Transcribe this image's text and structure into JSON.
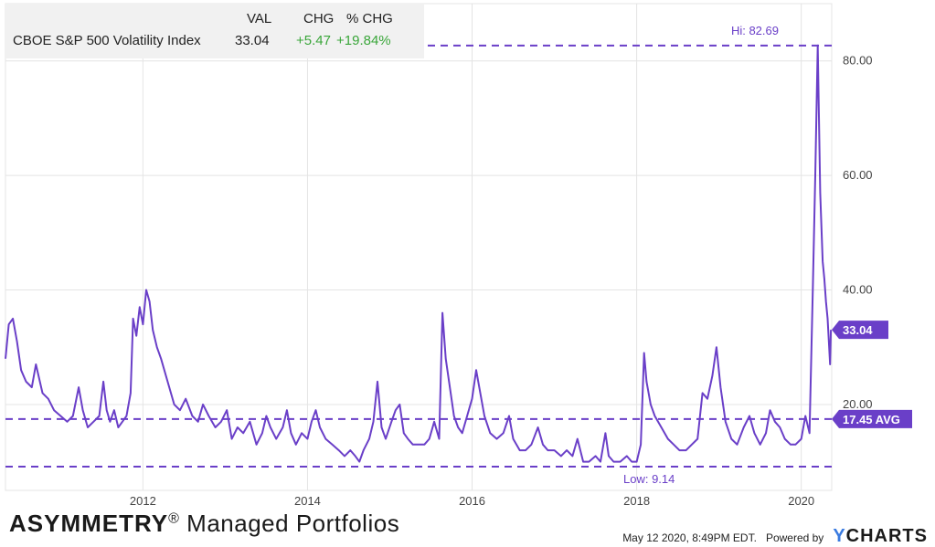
{
  "legend": {
    "col_val": "VAL",
    "col_chg": "CHG",
    "col_pct": "% CHG",
    "name": "CBOE S&P 500 Volatility Index",
    "val": "33.04",
    "chg": "+5.47",
    "pct": "+19.84%"
  },
  "footer": {
    "brand_bold": "ASYMMETRY",
    "brand_reg": "®",
    "brand_rest": " Managed Portfolios",
    "timestamp": "May 12 2020, 8:49PM EDT.",
    "powered": "Powered by",
    "ycharts_y": "Y",
    "ycharts_rest": "CHARTS"
  },
  "colors": {
    "line": "#6a3fc8",
    "grid": "#e4e4e4",
    "label_bg": "#6a3fc8",
    "positive": "#3aa63a"
  },
  "chart_data": {
    "type": "line",
    "title": "CBOE S&P 500 Volatility Index",
    "xlabel": "",
    "ylabel": "",
    "xlim": [
      2010.33,
      2020.37
    ],
    "ylim": [
      5,
      90
    ],
    "x_ticks": [
      2012,
      2014,
      2016,
      2018,
      2020
    ],
    "x_tick_labels": [
      "2012",
      "2014",
      "2016",
      "2018",
      "2020"
    ],
    "y_ticks": [
      20,
      40,
      60,
      80
    ],
    "y_tick_labels": [
      "20.00",
      "40.00",
      "60.00",
      "80.00"
    ],
    "grid": true,
    "reference_lines": [
      {
        "value": 82.69,
        "label": "Hi: 82.69"
      },
      {
        "value": 17.45,
        "label": "17.45 AVG"
      },
      {
        "value": 9.14,
        "label": "Low: 9.14"
      }
    ],
    "last_value": {
      "value": 33.04,
      "label": "33.04"
    },
    "series": [
      {
        "values": [
          [
            2010.33,
            28
          ],
          [
            2010.37,
            34
          ],
          [
            2010.42,
            35
          ],
          [
            2010.47,
            31
          ],
          [
            2010.52,
            26
          ],
          [
            2010.58,
            24
          ],
          [
            2010.65,
            23
          ],
          [
            2010.7,
            27
          ],
          [
            2010.78,
            22
          ],
          [
            2010.85,
            21
          ],
          [
            2010.92,
            19
          ],
          [
            2011.0,
            18
          ],
          [
            2011.08,
            17
          ],
          [
            2011.15,
            18
          ],
          [
            2011.22,
            23
          ],
          [
            2011.27,
            19
          ],
          [
            2011.33,
            16
          ],
          [
            2011.4,
            17
          ],
          [
            2011.47,
            18
          ],
          [
            2011.52,
            24
          ],
          [
            2011.56,
            19
          ],
          [
            2011.6,
            17
          ],
          [
            2011.65,
            19
          ],
          [
            2011.7,
            16
          ],
          [
            2011.75,
            17
          ],
          [
            2011.8,
            18
          ],
          [
            2011.85,
            22
          ],
          [
            2011.88,
            35
          ],
          [
            2011.92,
            32
          ],
          [
            2011.96,
            37
          ],
          [
            2012.0,
            34
          ],
          [
            2012.04,
            40
          ],
          [
            2012.08,
            38
          ],
          [
            2012.12,
            33
          ],
          [
            2012.17,
            30
          ],
          [
            2012.22,
            28
          ],
          [
            2012.3,
            24
          ],
          [
            2012.38,
            20
          ],
          [
            2012.45,
            19
          ],
          [
            2012.52,
            21
          ],
          [
            2012.6,
            18
          ],
          [
            2012.67,
            17
          ],
          [
            2012.73,
            20
          ],
          [
            2012.8,
            18
          ],
          [
            2012.88,
            16
          ],
          [
            2012.95,
            17
          ],
          [
            2013.02,
            19
          ],
          [
            2013.08,
            14
          ],
          [
            2013.15,
            16
          ],
          [
            2013.22,
            15
          ],
          [
            2013.3,
            17
          ],
          [
            2013.38,
            13
          ],
          [
            2013.45,
            15
          ],
          [
            2013.5,
            18
          ],
          [
            2013.55,
            16
          ],
          [
            2013.62,
            14
          ],
          [
            2013.7,
            16
          ],
          [
            2013.75,
            19
          ],
          [
            2013.8,
            15
          ],
          [
            2013.86,
            13
          ],
          [
            2013.93,
            15
          ],
          [
            2014.0,
            14
          ],
          [
            2014.05,
            17
          ],
          [
            2014.1,
            19
          ],
          [
            2014.15,
            16
          ],
          [
            2014.22,
            14
          ],
          [
            2014.3,
            13
          ],
          [
            2014.38,
            12
          ],
          [
            2014.45,
            11
          ],
          [
            2014.52,
            12
          ],
          [
            2014.58,
            11
          ],
          [
            2014.63,
            10
          ],
          [
            2014.68,
            12
          ],
          [
            2014.75,
            14
          ],
          [
            2014.8,
            17
          ],
          [
            2014.85,
            24
          ],
          [
            2014.9,
            16
          ],
          [
            2014.95,
            14
          ],
          [
            2015.02,
            17
          ],
          [
            2015.07,
            19
          ],
          [
            2015.12,
            20
          ],
          [
            2015.17,
            15
          ],
          [
            2015.22,
            14
          ],
          [
            2015.28,
            13
          ],
          [
            2015.35,
            13
          ],
          [
            2015.42,
            13
          ],
          [
            2015.48,
            14
          ],
          [
            2015.54,
            17
          ],
          [
            2015.6,
            14
          ],
          [
            2015.64,
            36
          ],
          [
            2015.68,
            28
          ],
          [
            2015.72,
            24
          ],
          [
            2015.78,
            18
          ],
          [
            2015.83,
            16
          ],
          [
            2015.88,
            15
          ],
          [
            2015.94,
            18
          ],
          [
            2016.0,
            21
          ],
          [
            2016.05,
            26
          ],
          [
            2016.1,
            22
          ],
          [
            2016.15,
            18
          ],
          [
            2016.22,
            15
          ],
          [
            2016.3,
            14
          ],
          [
            2016.38,
            15
          ],
          [
            2016.45,
            18
          ],
          [
            2016.5,
            14
          ],
          [
            2016.58,
            12
          ],
          [
            2016.65,
            12
          ],
          [
            2016.72,
            13
          ],
          [
            2016.8,
            16
          ],
          [
            2016.86,
            13
          ],
          [
            2016.92,
            12
          ],
          [
            2017.0,
            12
          ],
          [
            2017.08,
            11
          ],
          [
            2017.15,
            12
          ],
          [
            2017.22,
            11
          ],
          [
            2017.28,
            14
          ],
          [
            2017.35,
            10
          ],
          [
            2017.42,
            10
          ],
          [
            2017.5,
            11
          ],
          [
            2017.56,
            10
          ],
          [
            2017.62,
            15
          ],
          [
            2017.66,
            11
          ],
          [
            2017.72,
            10
          ],
          [
            2017.8,
            10
          ],
          [
            2017.88,
            11
          ],
          [
            2017.94,
            10
          ],
          [
            2018.0,
            10
          ],
          [
            2018.05,
            13
          ],
          [
            2018.09,
            29
          ],
          [
            2018.12,
            24
          ],
          [
            2018.17,
            20
          ],
          [
            2018.22,
            18
          ],
          [
            2018.3,
            16
          ],
          [
            2018.38,
            14
          ],
          [
            2018.45,
            13
          ],
          [
            2018.52,
            12
          ],
          [
            2018.6,
            12
          ],
          [
            2018.67,
            13
          ],
          [
            2018.74,
            14
          ],
          [
            2018.8,
            22
          ],
          [
            2018.86,
            21
          ],
          [
            2018.92,
            25
          ],
          [
            2018.97,
            30
          ],
          [
            2019.02,
            23
          ],
          [
            2019.08,
            17
          ],
          [
            2019.15,
            14
          ],
          [
            2019.22,
            13
          ],
          [
            2019.3,
            16
          ],
          [
            2019.37,
            18
          ],
          [
            2019.43,
            15
          ],
          [
            2019.5,
            13
          ],
          [
            2019.57,
            15
          ],
          [
            2019.62,
            19
          ],
          [
            2019.68,
            17
          ],
          [
            2019.74,
            16
          ],
          [
            2019.8,
            14
          ],
          [
            2019.87,
            13
          ],
          [
            2019.93,
            13
          ],
          [
            2020.0,
            14
          ],
          [
            2020.05,
            18
          ],
          [
            2020.1,
            15
          ],
          [
            2020.14,
            40
          ],
          [
            2020.17,
            60
          ],
          [
            2020.2,
            82.69
          ],
          [
            2020.23,
            57
          ],
          [
            2020.26,
            45
          ],
          [
            2020.28,
            42
          ],
          [
            2020.3,
            38
          ],
          [
            2020.32,
            35
          ],
          [
            2020.35,
            27
          ],
          [
            2020.36,
            33.04
          ]
        ]
      }
    ]
  }
}
